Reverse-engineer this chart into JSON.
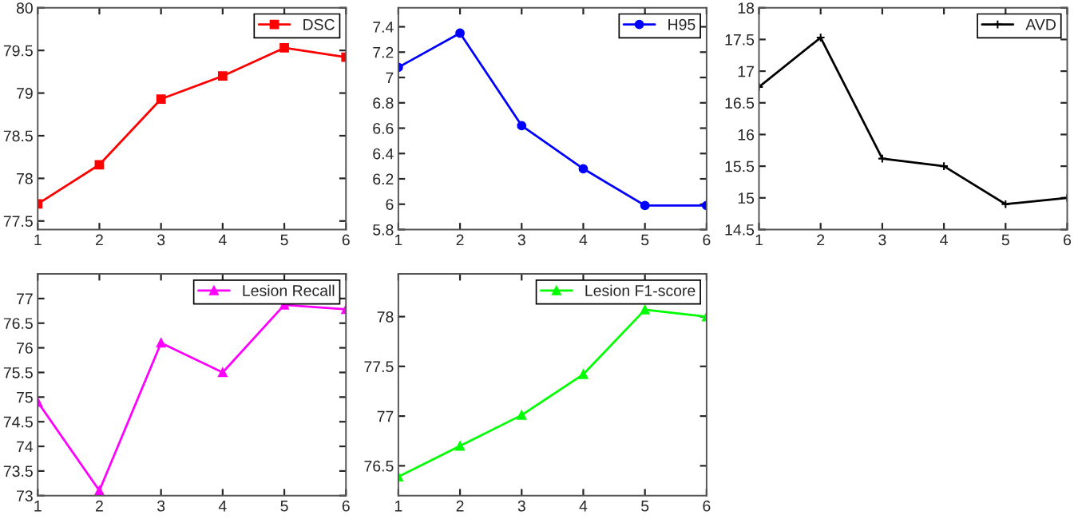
{
  "chart_data": [
    {
      "type": "line",
      "x": [
        1,
        2,
        3,
        4,
        5,
        6
      ],
      "xlim": [
        1,
        6
      ],
      "xticks": [
        1,
        2,
        3,
        4,
        5,
        6
      ],
      "ylim": [
        77.4,
        80
      ],
      "yticks": [
        77.5,
        78,
        78.5,
        79,
        79.5,
        80
      ],
      "marker": "square",
      "legend": "top right",
      "grid": false,
      "series": [
        {
          "name": "DSC",
          "color": "#ff0000",
          "values": [
            77.7,
            78.16,
            78.93,
            79.2,
            79.53,
            79.42
          ]
        }
      ]
    },
    {
      "type": "line",
      "x": [
        1,
        2,
        3,
        4,
        5,
        6
      ],
      "xlim": [
        1,
        6
      ],
      "xticks": [
        1,
        2,
        3,
        4,
        5,
        6
      ],
      "ylim": [
        5.8,
        7.55
      ],
      "yticks": [
        5.8,
        6,
        6.2,
        6.4,
        6.6,
        6.8,
        7,
        7.2,
        7.4
      ],
      "marker": "circle",
      "legend": "top right",
      "grid": false,
      "series": [
        {
          "name": "H95",
          "color": "#0000ff",
          "values": [
            7.08,
            7.35,
            6.62,
            6.28,
            5.99,
            5.99
          ]
        }
      ]
    },
    {
      "type": "line",
      "x": [
        1,
        2,
        3,
        4,
        5,
        6
      ],
      "xlim": [
        1,
        6
      ],
      "xticks": [
        1,
        2,
        3,
        4,
        5,
        6
      ],
      "ylim": [
        14.5,
        18
      ],
      "yticks": [
        14.5,
        15,
        15.5,
        16,
        16.5,
        17,
        17.5,
        18
      ],
      "marker": "cross",
      "legend": "top right",
      "grid": false,
      "series": [
        {
          "name": "AVD",
          "color": "#000000",
          "values": [
            16.75,
            17.53,
            15.62,
            15.5,
            14.9,
            15.0
          ]
        }
      ]
    },
    {
      "type": "line",
      "x": [
        1,
        2,
        3,
        4,
        5,
        6
      ],
      "xlim": [
        1,
        6
      ],
      "xticks": [
        1,
        2,
        3,
        4,
        5,
        6
      ],
      "ylim": [
        73,
        77.5
      ],
      "yticks": [
        73,
        73.5,
        74,
        74.5,
        75,
        75.5,
        76,
        76.5,
        77
      ],
      "marker": "triangle",
      "legend": "top right",
      "grid": false,
      "series": [
        {
          "name": "Lesion Recall",
          "color": "#ff00ff",
          "values": [
            74.9,
            73.1,
            76.1,
            75.5,
            76.87,
            76.78
          ]
        }
      ]
    },
    {
      "type": "line",
      "x": [
        1,
        2,
        3,
        4,
        5,
        6
      ],
      "xlim": [
        1,
        6
      ],
      "xticks": [
        1,
        2,
        3,
        4,
        5,
        6
      ],
      "ylim": [
        76.2,
        78.43
      ],
      "yticks": [
        76.5,
        77,
        77.5,
        78
      ],
      "marker": "triangle",
      "legend": "top right",
      "grid": false,
      "series": [
        {
          "name": "Lesion F1-score",
          "color": "#00ff00",
          "values": [
            76.39,
            76.7,
            77.01,
            77.42,
            78.07,
            78.0
          ]
        }
      ]
    }
  ]
}
